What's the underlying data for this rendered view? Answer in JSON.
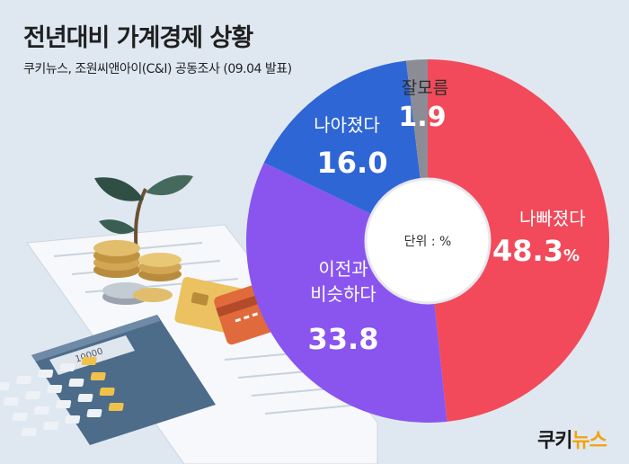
{
  "header": {
    "title": "전년대비 가계경제 상황",
    "subtitle": "쿠키뉴스, 조원씨앤아이(C&I) 공동조사 (09.04 발표)"
  },
  "brand": {
    "name_part1": "쿠키",
    "name_part2": "뉴스"
  },
  "illustration": {
    "calculator_display": "10000"
  },
  "chart_data": {
    "type": "pie",
    "style": "donut",
    "title": "전년대비 가계경제 상황",
    "center_label": "단위 : %",
    "series": [
      {
        "name": "나빠졌다",
        "value": 48.3,
        "label": "48.3",
        "unit": "%",
        "color": "#f24a5a"
      },
      {
        "name": "이전과 비슷하다",
        "name_lines": [
          "이전과",
          "비슷하다"
        ],
        "value": 33.8,
        "label": "33.8",
        "color": "#8a55ef"
      },
      {
        "name": "나아졌다",
        "value": 16.0,
        "label": "16.0",
        "color": "#2f66d6"
      },
      {
        "name": "잘모름",
        "value": 1.9,
        "label": "1.9",
        "color": "#8c8c96"
      }
    ],
    "legend": "none"
  }
}
